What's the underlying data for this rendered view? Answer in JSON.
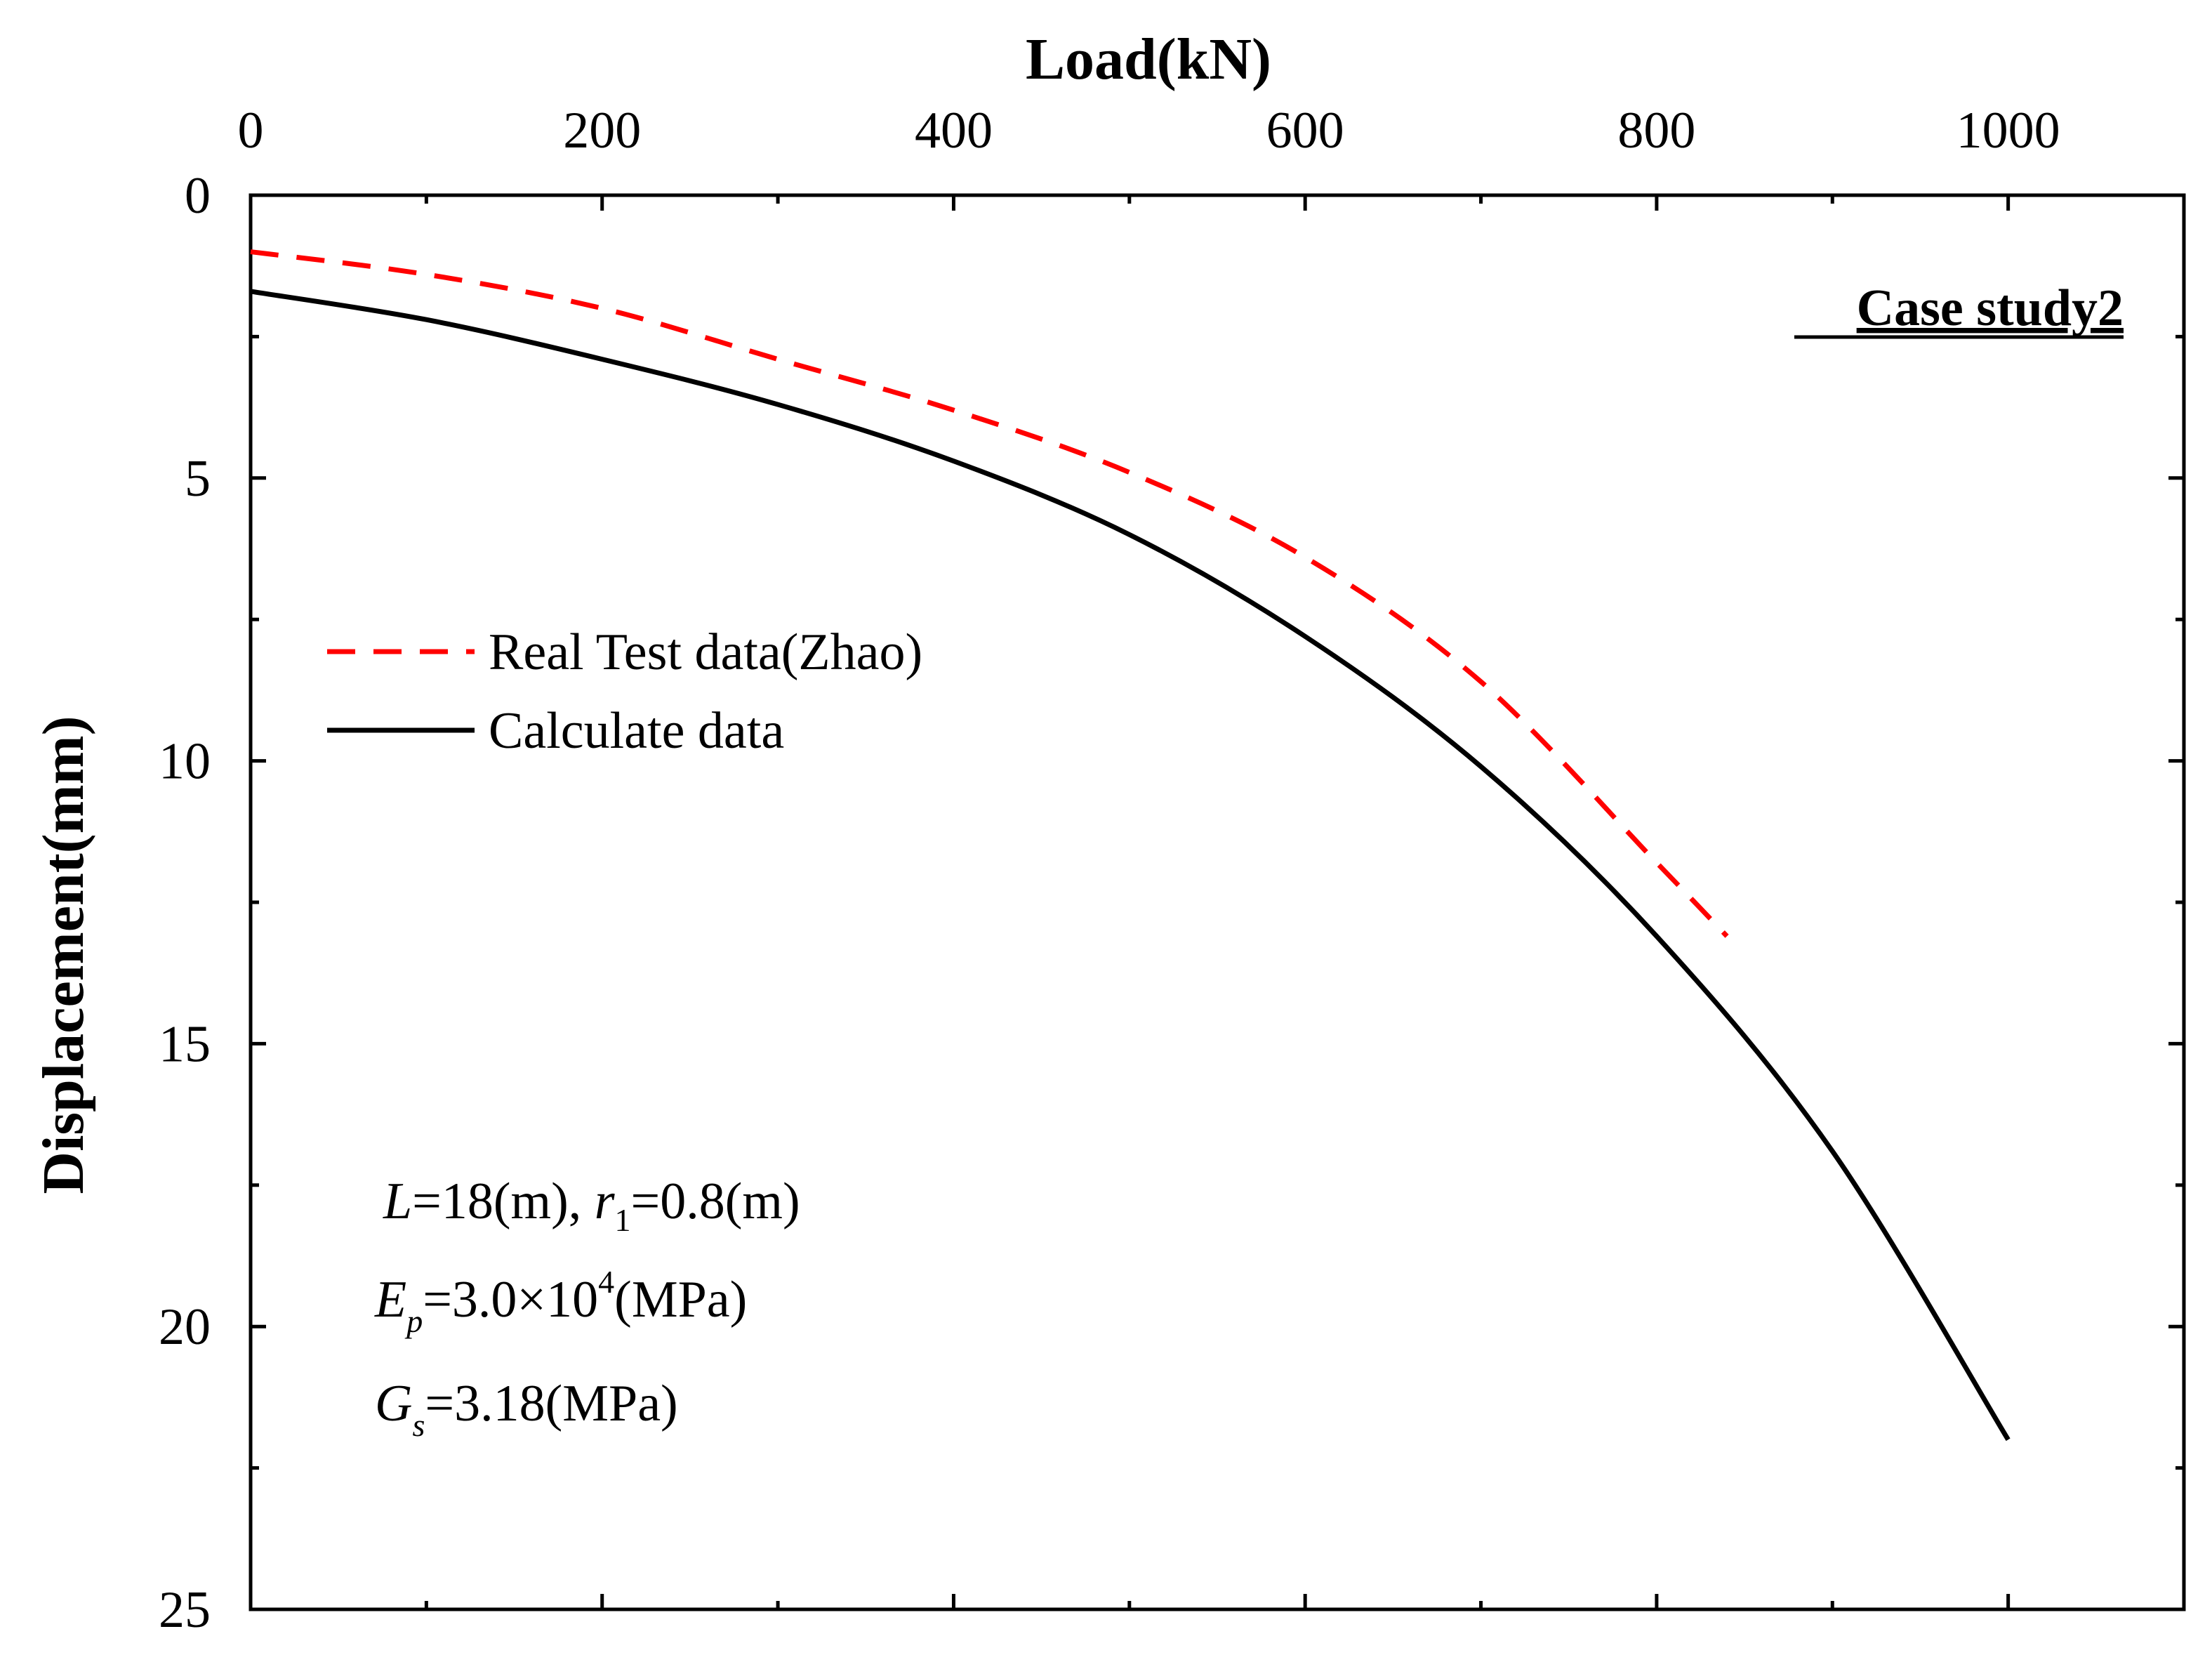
{
  "chart_data": {
    "type": "line",
    "title": "",
    "xlabel": "Load(kN)",
    "ylabel": "Displacement(mm)",
    "xlim": [
      0,
      1100
    ],
    "ylim": [
      0,
      25
    ],
    "y_inverted": true,
    "x_axis_position": "top",
    "x_ticks": [
      0,
      200,
      400,
      600,
      800,
      1000
    ],
    "y_ticks": [
      0,
      5,
      10,
      15,
      20,
      25
    ],
    "x_tick_labels": [
      "0",
      "200",
      "400",
      "600",
      "800",
      "1000"
    ],
    "y_tick_labels": [
      "0",
      "5",
      "10",
      "15",
      "20",
      "25"
    ],
    "series": [
      {
        "name": "Real Test data(Zhao)",
        "color": "#ff0000",
        "style": "dashed",
        "x": [
          0,
          100,
          200,
          300,
          400,
          500,
          600,
          700,
          800,
          840
        ],
        "y": [
          1.0,
          1.4,
          2.0,
          2.9,
          3.8,
          4.9,
          6.4,
          8.6,
          11.8,
          13.1
        ]
      },
      {
        "name": "Calculate data",
        "color": "#000000",
        "style": "solid",
        "x": [
          0,
          100,
          200,
          300,
          400,
          500,
          600,
          700,
          800,
          900,
          1000
        ],
        "y": [
          1.7,
          2.2,
          2.9,
          3.7,
          4.7,
          6.0,
          7.8,
          10.1,
          13.1,
          16.9,
          22.0
        ]
      }
    ],
    "legend_position": "upper-left",
    "annotations": {
      "case_label": "Case study2",
      "params": {
        "line1": {
          "L": "L",
          "L_val": "=18(m), ",
          "r": "r",
          "r_sub": "1",
          "r_val": "=0.8(m)"
        },
        "line2": {
          "E": "E",
          "E_sub": "p",
          "E_val": "=3.0×10",
          "E_sup": "4",
          "E_unit": "(MPa)"
        },
        "line3": {
          "G": "G",
          "G_sub": "s",
          "G_val": "=3.18(MPa)"
        }
      }
    }
  }
}
